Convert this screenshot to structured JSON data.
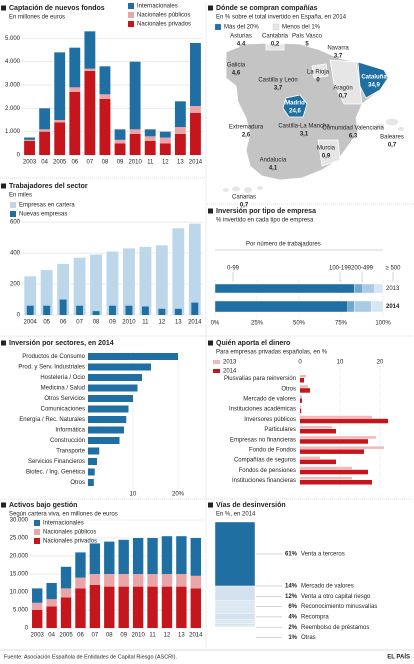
{
  "chart_data": [
    {
      "type": "stacked_bar",
      "title": "Captación de nuevos fondos",
      "subtitle": "En millones de euros",
      "categories": [
        "2003",
        "04",
        "2005",
        "06",
        "07",
        "08",
        "09",
        "2010",
        "11",
        "12",
        "13",
        "2014"
      ],
      "series": [
        {
          "name": "Internacionales",
          "color": "#1f6fa3",
          "values": [
            100,
            900,
            2900,
            1700,
            1600,
            1200,
            450,
            2900,
            300,
            250,
            1100,
            2700
          ]
        },
        {
          "name": "Nacionales públicos",
          "color": "#e9a5a8",
          "values": [
            50,
            100,
            100,
            200,
            100,
            200,
            150,
            200,
            200,
            250,
            300,
            300
          ]
        },
        {
          "name": "Nacionales privados",
          "color": "#c4161c",
          "values": [
            600,
            1000,
            1400,
            2700,
            3600,
            2400,
            500,
            900,
            600,
            500,
            900,
            1800
          ]
        }
      ],
      "ylim": [
        0,
        5400
      ],
      "yticks": [
        0,
        {
          "value": 1000,
          "label": "1.000"
        },
        {
          "value": 2000,
          "label": "2.000"
        },
        {
          "value": 3000,
          "label": "3.000"
        },
        {
          "value": 4000,
          "label": "4.000"
        },
        {
          "value": 5000,
          "label": "5.000"
        }
      ]
    },
    {
      "type": "map",
      "title": "Dónde se compran compañías",
      "subtitle": "En % sobre el total invertido en España, en 2014",
      "legend": [
        {
          "name": "Más del 20%",
          "color": "#1f6fa3"
        },
        {
          "name": "Menos del 1%",
          "color": "#e6e6e6"
        }
      ],
      "regions": [
        {
          "name": "Asturias",
          "value": 4.4,
          "label": "4,4"
        },
        {
          "name": "Cantabria",
          "value": 0.2,
          "label": "0,2"
        },
        {
          "name": "País Vasco",
          "value": 5,
          "label": "5"
        },
        {
          "name": "Navarra",
          "value": 3.7,
          "label": "3,7"
        },
        {
          "name": "Galicia",
          "value": 4.6,
          "label": "4,6"
        },
        {
          "name": "Castilla y León",
          "value": 3.7,
          "label": "3,7"
        },
        {
          "name": "La Rioja",
          "value": 0,
          "label": "0"
        },
        {
          "name": "Aragón",
          "value": 0.7,
          "label": "0,7"
        },
        {
          "name": "Cataluña",
          "value": 34.9,
          "label": "34,9"
        },
        {
          "name": "Madrid",
          "value": 24.6,
          "label": "24,6"
        },
        {
          "name": "Extremadura",
          "value": 2.6,
          "label": "2,6"
        },
        {
          "name": "Castilla-La Mancha",
          "value": 3.1,
          "label": "3,1"
        },
        {
          "name": "Comunidad Valenciana",
          "value": 6.3,
          "label": "6,3"
        },
        {
          "name": "Baleares",
          "value": 0.7,
          "label": "0,7"
        },
        {
          "name": "Murcia",
          "value": 0.9,
          "label": "0,9"
        },
        {
          "name": "Andalucía",
          "value": 4.1,
          "label": "4,1"
        },
        {
          "name": "Canarias",
          "value": 0.7,
          "label": "0,7"
        }
      ]
    },
    {
      "type": "overlay_bar",
      "title": "Trabajadores del sector",
      "subtitle": "En miles",
      "categories": [
        "2004",
        "05",
        "06",
        "07",
        "08",
        "09",
        "2010",
        "11",
        "12",
        "13",
        "2014"
      ],
      "series": [
        {
          "name": "Empresas en cartera",
          "color": "#bcd6ea",
          "values": [
            250,
            290,
            330,
            370,
            390,
            410,
            430,
            440,
            450,
            560,
            590
          ]
        },
        {
          "name": "Nuevas empresas",
          "color": "#1f6fa3",
          "values": [
            60,
            60,
            100,
            60,
            25,
            60,
            60,
            55,
            40,
            40,
            80
          ]
        }
      ],
      "ylim": [
        0,
        620
      ],
      "yticks": [
        0,
        200,
        400,
        600
      ]
    },
    {
      "type": "stacked_hbar",
      "title": "Inversión por tipo de empresa",
      "subtitle": "% invertido en cada tipo de empresa",
      "group_title": "Por número de trabajadores",
      "categories": [
        "2013",
        "2014"
      ],
      "series": [
        {
          "name": "0-99",
          "color": "#1f6fa3",
          "values": [
            83,
            79
          ]
        },
        {
          "name": "100-199",
          "color": "#6ea8d0",
          "values": [
            5,
            4
          ]
        },
        {
          "name": "200-499",
          "color": "#a9cbe5",
          "values": [
            7,
            10
          ]
        },
        {
          "name": "≥ 500",
          "color": "#d6e7f3",
          "values": [
            5,
            7
          ]
        }
      ],
      "xlim": [
        0,
        100
      ],
      "xticks": [
        {
          "value": 0,
          "label": "0%"
        },
        {
          "value": 25,
          "label": "25%"
        },
        {
          "value": 50,
          "label": "50%"
        },
        {
          "value": 75,
          "label": "75%"
        },
        {
          "value": 100,
          "label": "100%"
        }
      ]
    },
    {
      "type": "hbar",
      "title": "Inversión por sectores, en 2014",
      "color": "#1f6fa3",
      "categories": [
        "Productos de Consumo",
        "Prod. y Serv. Industriales",
        "Hostelería / Ocio",
        "Medicina / Salud",
        "Otros Servicios",
        "Comunicaciones",
        "Energía / Rec. Naturales",
        "Informática",
        "Construcción",
        "Transporte",
        "Servicios Financieros",
        "Biotec. / Ing. Genética",
        "Otros"
      ],
      "values": [
        20,
        14,
        12,
        11,
        10,
        9,
        8.5,
        8,
        7,
        2.5,
        2,
        1.5,
        1.3
      ],
      "xlim": [
        0,
        20
      ],
      "xticks": [
        10,
        {
          "value": 20,
          "label": "20%"
        }
      ]
    },
    {
      "type": "grouped_hbar",
      "title": "Quién aporta el dinero",
      "subtitle": "Para empresas privadas españolas, en %",
      "categories": [
        "Plusvalías para reinversión",
        "Otros",
        "Mercado de valores",
        "Instituciones académicas",
        "Inversores públicos",
        "Particulares",
        "Empresas no financieras",
        "Fondo de Fondos",
        "Compañías de seguros",
        "Fondos de pensiones",
        "Instituciones financieras"
      ],
      "series": [
        {
          "name": "2013",
          "color": "#f2b8ba",
          "values": [
            1.5,
            2,
            0.5,
            0.3,
            18,
            8,
            19,
            21,
            5,
            13,
            13
          ]
        },
        {
          "name": "2014",
          "color": "#c4161c",
          "values": [
            1,
            2.5,
            0.5,
            0.3,
            22,
            9,
            17,
            16,
            9,
            17,
            18
          ]
        }
      ],
      "xlim": [
        0,
        25
      ],
      "xticks": [
        0,
        10,
        20
      ]
    },
    {
      "type": "stacked_bar",
      "title": "Activos bajo gestión",
      "subtitle": "Según cartera viva, en millones de euros",
      "categories": [
        "2003",
        "04",
        "2005",
        "06",
        "07",
        "08",
        "09",
        "2010",
        "11",
        "12",
        "13",
        "2014"
      ],
      "series": [
        {
          "name": "Internacionales",
          "color": "#1f6fa3",
          "values": [
            4000,
            4500,
            6000,
            7000,
            8500,
            9000,
            9500,
            10000,
            10000,
            10500,
            10500,
            10500
          ]
        },
        {
          "name": "Nacionales públicos",
          "color": "#e9a5a8",
          "values": [
            2000,
            2000,
            2500,
            3000,
            3000,
            3500,
            3500,
            3500,
            3500,
            3500,
            3500,
            3500
          ]
        },
        {
          "name": "Nacionales privados",
          "color": "#c4161c",
          "values": [
            5000,
            6000,
            8500,
            11000,
            12000,
            11500,
            11500,
            11500,
            11500,
            11500,
            11500,
            11000
          ]
        }
      ],
      "ylim": [
        0,
        30000
      ],
      "yticks": [
        0,
        {
          "value": 5000,
          "label": "5.000"
        },
        {
          "value": 10000,
          "label": "10.000"
        },
        {
          "value": 15000,
          "label": "15.000"
        },
        {
          "value": 20000,
          "label": "20.000"
        },
        {
          "value": 25000,
          "label": "25.000"
        },
        {
          "value": 30000,
          "label": "30.000"
        }
      ]
    },
    {
      "type": "stacked_column",
      "title": "Vías de desinversión",
      "subtitle": "En %, en 2014",
      "categories": [
        "Venta a terceros",
        "Mercado de valores",
        "Venta a otro capital riesgo",
        "Reconocimiento minusvalías",
        "Recompra",
        "Reembolso de préstamos",
        "Otras"
      ],
      "values": [
        61,
        14,
        12,
        6,
        4,
        2,
        1
      ],
      "value_labels": [
        "61%",
        "14%",
        "12%",
        "6%",
        "4%",
        "2%",
        "1%"
      ],
      "colors": [
        "#1f6fa3",
        "#d3e2ee",
        "#dde9f2",
        "#d3e2ee",
        "#dde9f2",
        "#d3e2ee",
        "#dde9f2"
      ],
      "ylim": [
        0,
        100
      ]
    }
  ],
  "footer": {
    "source": "Fuente: Asociación Española de Entidades de Capital Riesgo (ASCRI).",
    "brand": "EL PAÍS"
  }
}
